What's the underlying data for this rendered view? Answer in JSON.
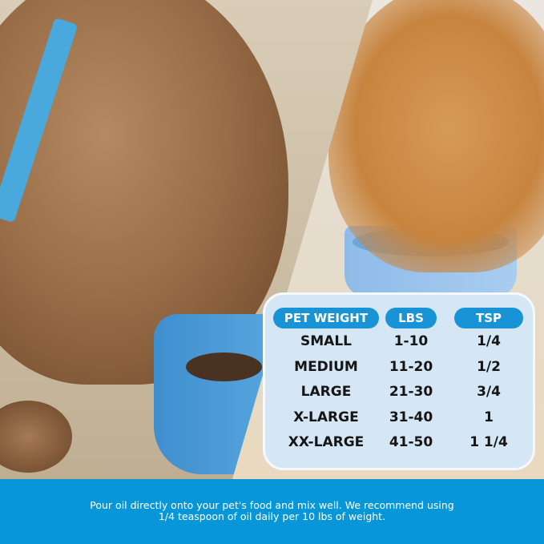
{
  "table": {
    "headers": [
      "PET WEIGHT",
      "LBS",
      "TSP"
    ],
    "rows": [
      [
        "SMALL",
        "1-10",
        "1/4"
      ],
      [
        "MEDIUM",
        "11-20",
        "1/2"
      ],
      [
        "LARGE",
        "21-30",
        "3/4"
      ],
      [
        "X-LARGE",
        "31-40",
        "1"
      ],
      [
        "XX-LARGE",
        "41-50",
        "1 1/4"
      ]
    ]
  },
  "banner": {
    "line1": "Pour oil directly onto your pet's food and mix well. We recommend using",
    "line2": "1/4 teaspoon of oil daily per 10 lbs of weight."
  },
  "colors": {
    "accent": "#1793d6",
    "banner": "#0797d9",
    "card": "#d5e7f5"
  }
}
